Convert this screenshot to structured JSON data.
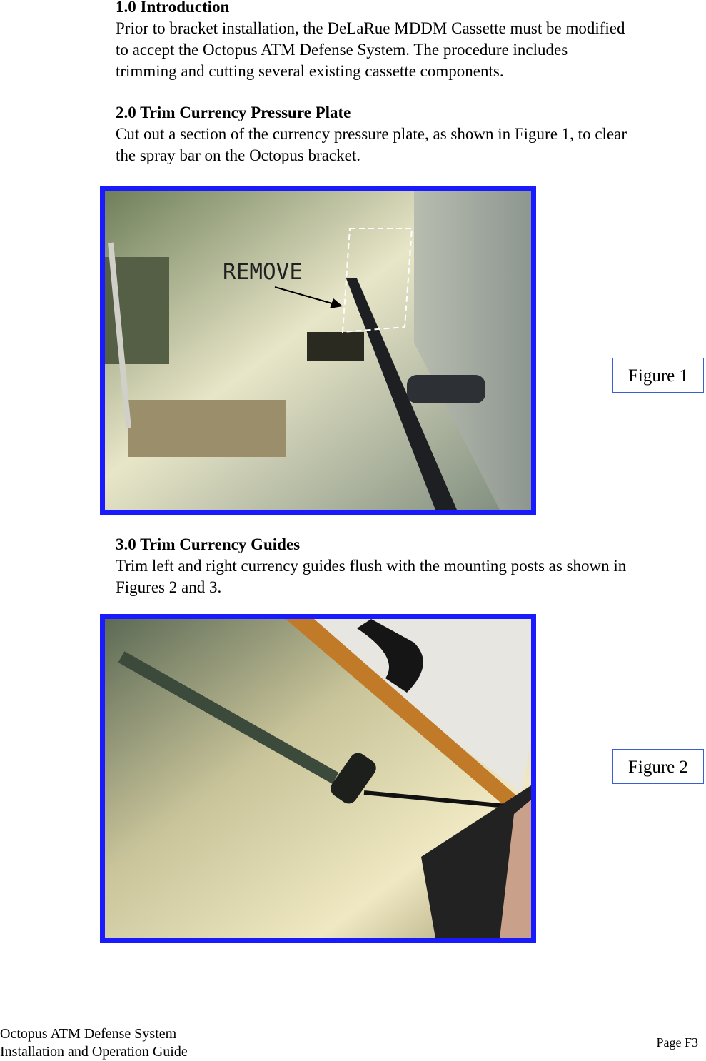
{
  "sections": [
    {
      "heading": "1.0 Introduction",
      "body": [
        "Prior to bracket installation, the DeLaRue MDDM Cassette must be modified",
        "to accept the Octopus ATM Defense System.  The procedure includes",
        "trimming and cutting several existing cassette components."
      ]
    },
    {
      "heading": "2.0 Trim Currency Pressure Plate",
      "body": [
        "Cut out a section of the currency pressure plate, as shown in Figure 1, to clear",
        "the spray bar on the Octopus bracket."
      ]
    },
    {
      "heading": "3.0 Trim Currency Guides",
      "body": [
        "Trim left and right currency guides flush with the mounting posts as shown in",
        "Figures 2 and 3."
      ]
    }
  ],
  "figures": [
    {
      "label": "Figure 1",
      "annotation": "REMOVE"
    },
    {
      "label": "Figure 2"
    }
  ],
  "footer": {
    "lines": [
      "Octopus ATM Defense System",
      "Installation and Operation Guide"
    ],
    "page": "Page F3"
  }
}
